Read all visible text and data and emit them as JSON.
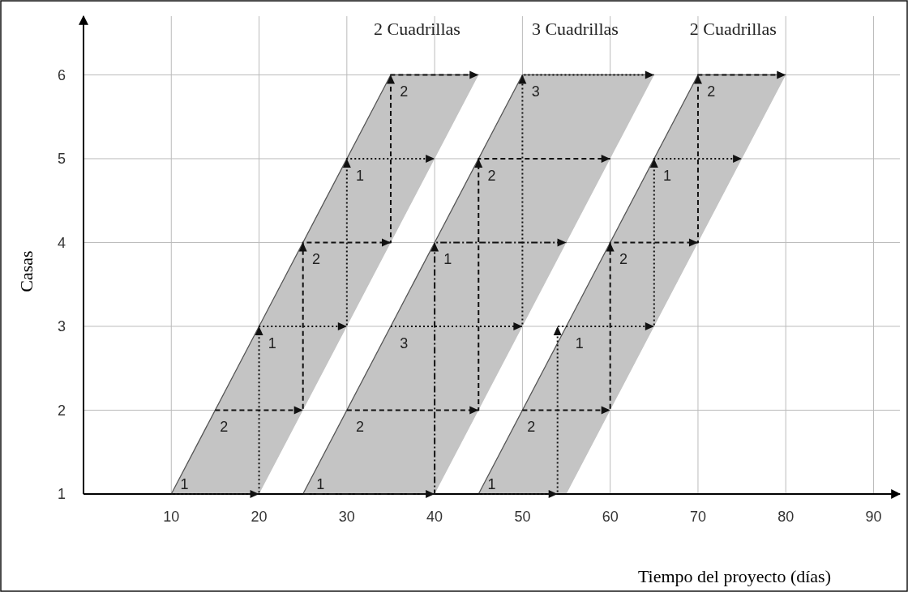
{
  "chart_data": {
    "type": "line",
    "xlabel": "Tiempo del proyecto (días)",
    "ylabel": "Casas",
    "xlim": [
      0,
      93
    ],
    "ylim": [
      1,
      6.7
    ],
    "xticks": [
      10,
      20,
      30,
      40,
      50,
      60,
      70,
      80,
      90
    ],
    "yticks": [
      1,
      2,
      3,
      4,
      5,
      6
    ],
    "grid": true,
    "marker": "none",
    "series": [
      {
        "color": "#555555",
        "line_style": "solid",
        "x": [
          10,
          20,
          35,
          45
        ],
        "lower": [
          1,
          1,
          4,
          6
        ],
        "upper": [
          1,
          3,
          6,
          6
        ],
        "values": [
          1,
          3,
          6,
          6
        ]
      },
      {
        "color": "#555555",
        "line_style": "solid",
        "x": [
          25,
          40,
          50,
          65
        ],
        "lower": [
          1,
          1,
          3,
          6
        ],
        "upper": [
          1,
          4,
          6,
          6
        ],
        "values": [
          1,
          4,
          6,
          6
        ]
      },
      {
        "color": "#555555",
        "line_style": "solid",
        "x": [
          45,
          55,
          70,
          80
        ],
        "lower": [
          1,
          1,
          4,
          6
        ],
        "upper": [
          1,
          3,
          6,
          6
        ],
        "values": [
          1,
          3,
          6,
          6
        ]
      },
      {
        "color": "#111111",
        "line_style": "dotted",
        "x": [
          10,
          20,
          20,
          30,
          30,
          40
        ],
        "values": [
          1,
          1,
          3,
          3,
          5,
          5
        ]
      },
      {
        "color": "#111111",
        "line_style": "dashed",
        "x": [
          15,
          25,
          25,
          35,
          35,
          45
        ],
        "values": [
          2,
          2,
          4,
          4,
          6,
          6
        ]
      },
      {
        "color": "#111111",
        "line_style": "dashdot",
        "x": [
          25,
          40,
          40,
          55
        ],
        "values": [
          1,
          1,
          4,
          4
        ]
      },
      {
        "color": "#111111",
        "line_style": "dashed",
        "x": [
          30,
          45,
          45,
          60
        ],
        "values": [
          2,
          2,
          5,
          5
        ]
      },
      {
        "color": "#111111",
        "line_style": "dotted",
        "x": [
          35,
          50,
          50,
          65
        ],
        "values": [
          3,
          3,
          6,
          6
        ]
      },
      {
        "color": "#111111",
        "line_style": "dotted",
        "x": [
          45,
          54,
          54,
          65,
          65,
          75
        ],
        "values": [
          1,
          1,
          3,
          3,
          5,
          5
        ]
      },
      {
        "color": "#111111",
        "line_style": "dashed",
        "x": [
          50,
          60,
          60,
          70,
          70,
          80
        ],
        "values": [
          2,
          2,
          4,
          4,
          6,
          6
        ]
      }
    ],
    "annotations": [
      "2 Cuadrillas",
      "3 Cuadrillas",
      "2 Cuadrillas",
      "1",
      "2",
      "1",
      "2",
      "1",
      "2",
      "1",
      "2",
      "3",
      "1",
      "2",
      "3",
      "1",
      "2",
      "1",
      "2",
      "1",
      "2"
    ]
  }
}
